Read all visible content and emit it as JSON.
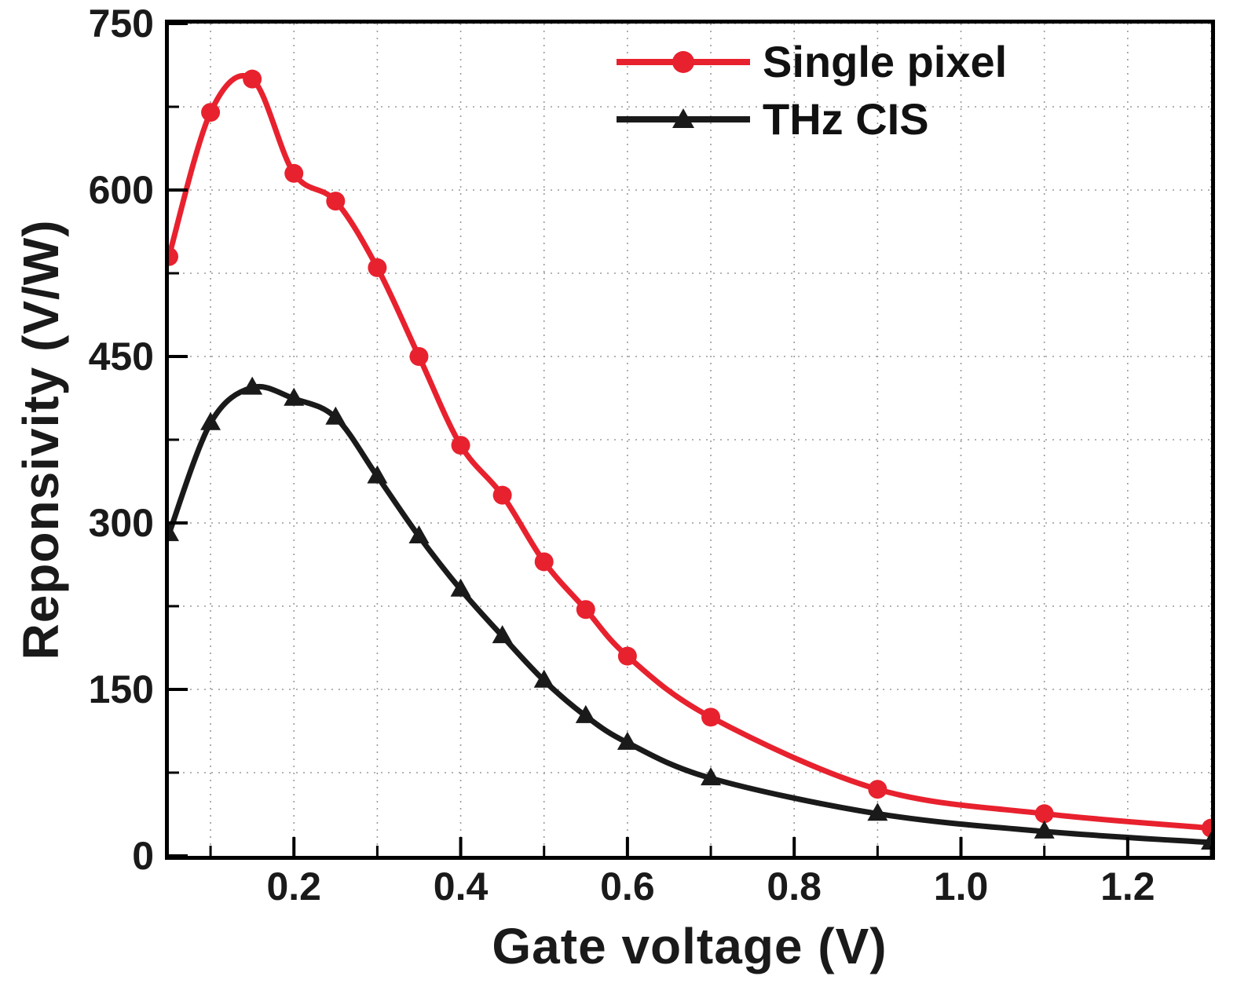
{
  "chart_data": {
    "type": "line",
    "title": "",
    "xlabel": "Gate voltage (V)",
    "ylabel": "Reponsivity (V/W)",
    "xlim": [
      0.05,
      1.3
    ],
    "ylim": [
      0,
      750
    ],
    "xticks": [
      0.2,
      0.4,
      0.6,
      0.8,
      1.0,
      1.2
    ],
    "xtick_labels": [
      "0.2",
      "0.4",
      "0.6",
      "0.8",
      "1.0",
      "1.2"
    ],
    "yticks": [
      0,
      150,
      300,
      450,
      600,
      750
    ],
    "ytick_labels": [
      "0",
      "150",
      "300",
      "450",
      "600",
      "750"
    ],
    "xticks_minor": [
      0.1,
      0.3,
      0.5,
      0.7,
      0.9,
      1.1,
      1.3
    ],
    "yticks_minor": [
      75,
      225,
      375,
      525,
      675
    ],
    "grid": true,
    "grid_x": [
      0.1,
      0.2,
      0.3,
      0.4,
      0.5,
      0.6,
      0.7,
      0.8,
      0.9,
      1.0,
      1.1,
      1.2,
      1.3
    ],
    "grid_y": [
      75,
      150,
      225,
      300,
      375,
      450,
      525,
      600,
      675,
      750
    ],
    "grid_color": "#9a9a9a",
    "legend_position": "top-right",
    "series": [
      {
        "name": "Single pixel",
        "color": "#e8212e",
        "marker": "circle",
        "x": [
          0.05,
          0.1,
          0.15,
          0.2,
          0.25,
          0.3,
          0.35,
          0.4,
          0.45,
          0.5,
          0.55,
          0.6,
          0.7,
          0.9,
          1.1,
          1.3
        ],
        "y": [
          540,
          670,
          700,
          615,
          590,
          530,
          450,
          370,
          325,
          265,
          222,
          180,
          125,
          60,
          38,
          25
        ]
      },
      {
        "name": "THz CIS",
        "color": "#1a1a1a",
        "marker": "triangle",
        "x": [
          0.05,
          0.1,
          0.15,
          0.2,
          0.25,
          0.3,
          0.35,
          0.4,
          0.45,
          0.5,
          0.55,
          0.6,
          0.7,
          0.9,
          1.1,
          1.3
        ],
        "y": [
          290,
          390,
          422,
          412,
          395,
          342,
          288,
          240,
          198,
          158,
          126,
          102,
          70,
          38,
          22,
          12
        ]
      }
    ]
  }
}
